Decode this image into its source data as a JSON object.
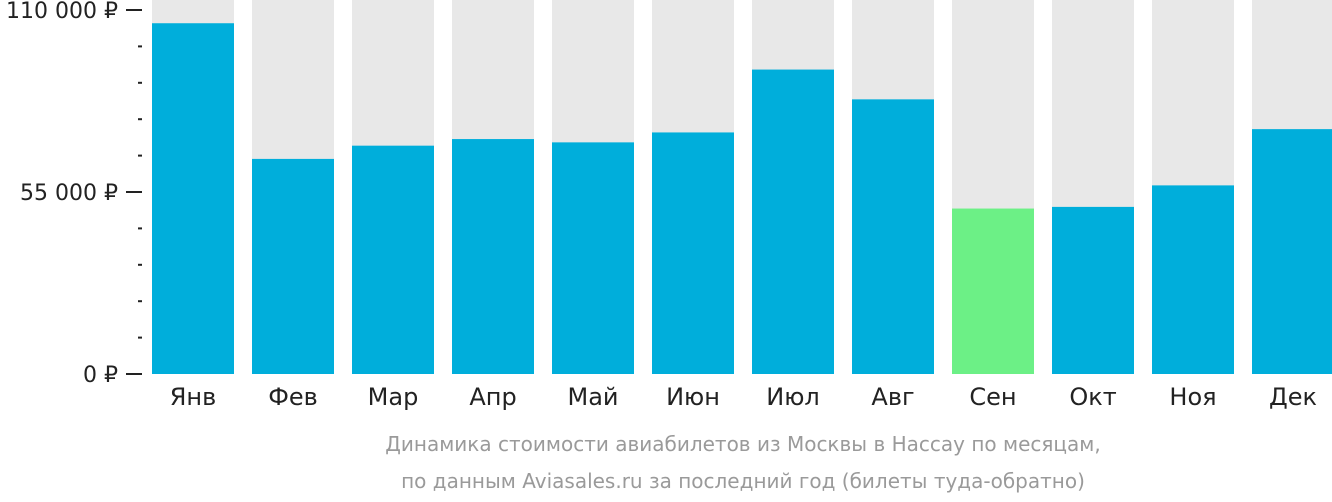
{
  "chart_data": {
    "type": "bar",
    "categories": [
      "Янв",
      "Фев",
      "Мар",
      "Апр",
      "Май",
      "Июн",
      "Июл",
      "Авг",
      "Сен",
      "Окт",
      "Ноя",
      "Дек"
    ],
    "values": [
      106000,
      65000,
      69000,
      71000,
      70000,
      73000,
      92000,
      83000,
      50000,
      50500,
      57000,
      74000
    ],
    "ylim": [
      0,
      110000
    ],
    "yticks": [
      0,
      55000,
      110000
    ],
    "ytick_labels": [
      "0 ₽",
      "55 000 ₽",
      "110 000 ₽"
    ],
    "minor_ticks_between": 4,
    "highlight_index": 8,
    "colors": {
      "bar": "#00aedb",
      "highlight": "#6cf086",
      "track": "#e8e8e8",
      "axis": "#222222",
      "caption": "#9a9a9a"
    },
    "caption": [
      "Динамика стоимости авиабилетов из Москвы в Нассау по месяцам,",
      "по данным Aviasales.ru за последний год (билеты туда-обратно)"
    ]
  }
}
